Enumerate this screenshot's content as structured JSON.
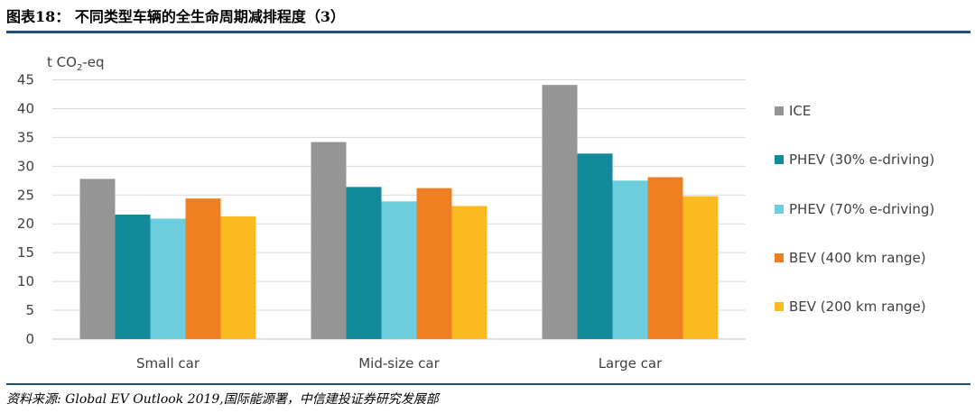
{
  "page": {
    "title": "图表18：  不同类型车辆的全生命周期减排程度（3）",
    "source": "资料来源: Global EV Outlook 2019,国际能源署，中信建投证券研究发展部"
  },
  "chart_data": {
    "type": "bar",
    "title": "",
    "ylabel_prefix": "t CO",
    "ylabel_sub": "2",
    "ylabel_suffix": "-eq",
    "xlabel": "",
    "ylim": [
      0,
      45
    ],
    "yticks": [
      "0",
      "5",
      "10",
      "15",
      "20",
      "25",
      "30",
      "35",
      "40",
      "45"
    ],
    "grid": true,
    "legend_position": "right",
    "categories": [
      "Small car",
      "Mid-size car",
      "Large car"
    ],
    "series": [
      {
        "name": "ICE",
        "color": "#959595",
        "values": [
          27.8,
          34.2,
          44.1
        ]
      },
      {
        "name": "PHEV (30% e-driving)",
        "color": "#128a9b",
        "values": [
          21.6,
          26.4,
          32.2
        ]
      },
      {
        "name": "PHEV (70% e-driving)",
        "color": "#6ccedd",
        "values": [
          20.9,
          23.9,
          27.5
        ]
      },
      {
        "name": "BEV (400 km range)",
        "color": "#ee8023",
        "values": [
          24.4,
          26.2,
          28.1
        ]
      },
      {
        "name": "BEV (200 km range)",
        "color": "#fbbb20",
        "values": [
          21.3,
          23.1,
          24.8
        ]
      }
    ]
  }
}
